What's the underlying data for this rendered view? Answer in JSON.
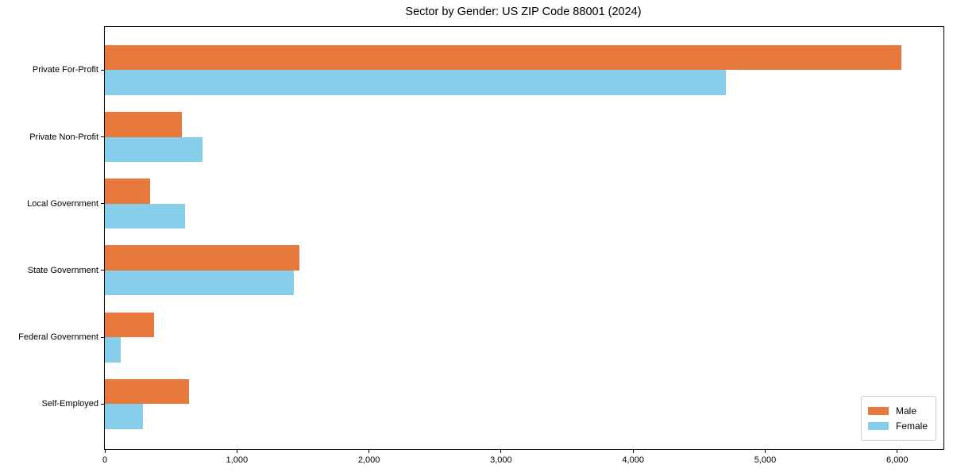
{
  "title": "Sector by Gender: US ZIP Code 88001 (2024)",
  "chart_data": {
    "type": "bar",
    "orientation": "horizontal",
    "title": "Sector by Gender: US ZIP Code 88001 (2024)",
    "categories": [
      "Private For-Profit",
      "Private Non-Profit",
      "Local Government",
      "State Government",
      "Federal Government",
      "Self-Employed"
    ],
    "series": [
      {
        "name": "Male",
        "color": "#E8793C",
        "values": [
          6030,
          580,
          340,
          1470,
          370,
          640
        ]
      },
      {
        "name": "Female",
        "color": "#87CEEB",
        "values": [
          4700,
          740,
          610,
          1430,
          120,
          290
        ]
      }
    ],
    "xlabel": "",
    "ylabel": "",
    "xlim": [
      0,
      6350
    ],
    "xticks": [
      0,
      1000,
      2000,
      3000,
      4000,
      5000,
      6000
    ],
    "xtick_labels": [
      "0",
      "1,000",
      "2,000",
      "3,000",
      "4,000",
      "5,000",
      "6,000"
    ],
    "grid": false,
    "legend": {
      "position": "lower right",
      "entries": [
        "Male",
        "Female"
      ]
    },
    "colors": {
      "male": "#E8793C",
      "female": "#87CEEB",
      "spine": "#000000",
      "background": "#ffffff"
    }
  }
}
